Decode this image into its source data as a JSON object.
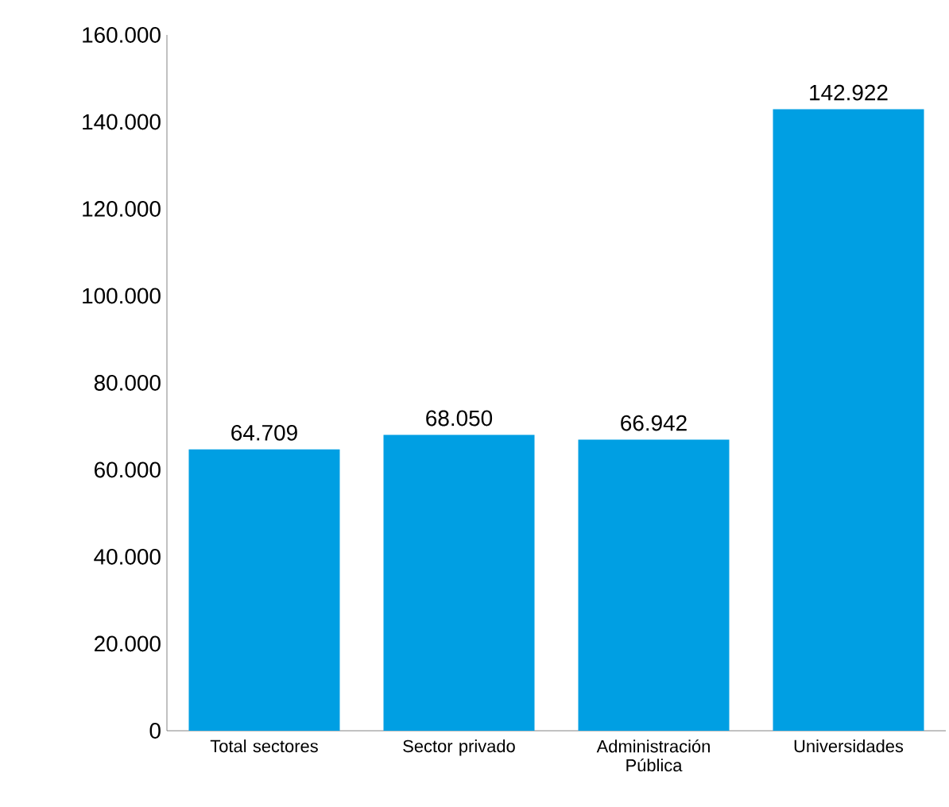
{
  "chart_data": {
    "type": "bar",
    "categories": [
      "Total sectores",
      "Sector privado",
      "Administración Pública",
      "Universidades"
    ],
    "values": [
      64709,
      68050,
      66942,
      142922
    ],
    "value_labels": [
      "64.709",
      "68.050",
      "66.942",
      "142.922"
    ],
    "color": "#009fe3",
    "ylim": [
      0,
      160000
    ],
    "yticks": [
      {
        "value": 0,
        "label": "0"
      },
      {
        "value": 20000,
        "label": "20.000"
      },
      {
        "value": 40000,
        "label": "40.000"
      },
      {
        "value": 60000,
        "label": "60.000"
      },
      {
        "value": 80000,
        "label": "80.000"
      },
      {
        "value": 100000,
        "label": "100.000"
      },
      {
        "value": 120000,
        "label": "120.000"
      },
      {
        "value": 140000,
        "label": "140.000"
      },
      {
        "value": 160000,
        "label": "160.000"
      }
    ],
    "grid": false
  }
}
